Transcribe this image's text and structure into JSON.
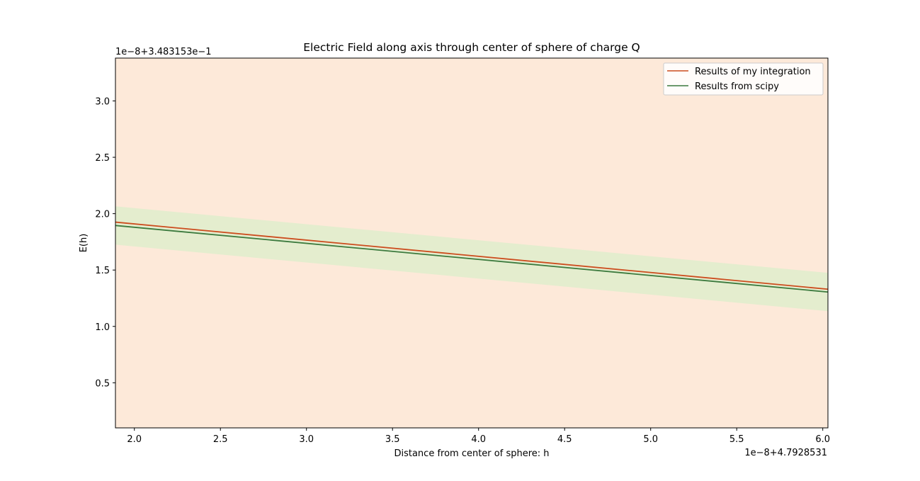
{
  "chart_data": {
    "type": "line",
    "title": "Electric Field along axis through center of sphere of charge Q",
    "xlabel": "Distance from center of sphere: h",
    "ylabel": "E(h)",
    "x_offset_label": "1e−8+4.7928531",
    "y_offset_label": "1e−8+3.483153e−1",
    "xlim": [
      1.89,
      6.03
    ],
    "ylim": [
      0.1,
      3.38
    ],
    "x_ticks": [
      2.0,
      2.5,
      3.0,
      3.5,
      4.0,
      4.5,
      5.0,
      5.5,
      6.0
    ],
    "x_tick_labels": [
      "2.0",
      "2.5",
      "3.0",
      "3.5",
      "4.0",
      "4.5",
      "5.0",
      "5.5",
      "6.0"
    ],
    "y_ticks": [
      0.5,
      1.0,
      1.5,
      2.0,
      2.5,
      3.0
    ],
    "y_tick_labels": [
      "0.5",
      "1.0",
      "1.5",
      "2.0",
      "2.5",
      "3.0"
    ],
    "legend_position": "top-right",
    "series": [
      {
        "name": "Results of my integration",
        "x": [
          1.89,
          6.03
        ],
        "y": [
          1.925,
          1.33
        ],
        "color": "#cc4c1e"
      },
      {
        "name": "Results from scipy",
        "x": [
          1.89,
          6.03
        ],
        "y": [
          1.895,
          1.305
        ],
        "color": "#3c7a3e"
      }
    ],
    "band": {
      "x": [
        1.89,
        6.03
      ],
      "upper": [
        2.065,
        1.475
      ],
      "lower": [
        1.725,
        1.135
      ],
      "color": "#e4edce"
    },
    "background_color": "#fde9d9",
    "grid": false
  }
}
